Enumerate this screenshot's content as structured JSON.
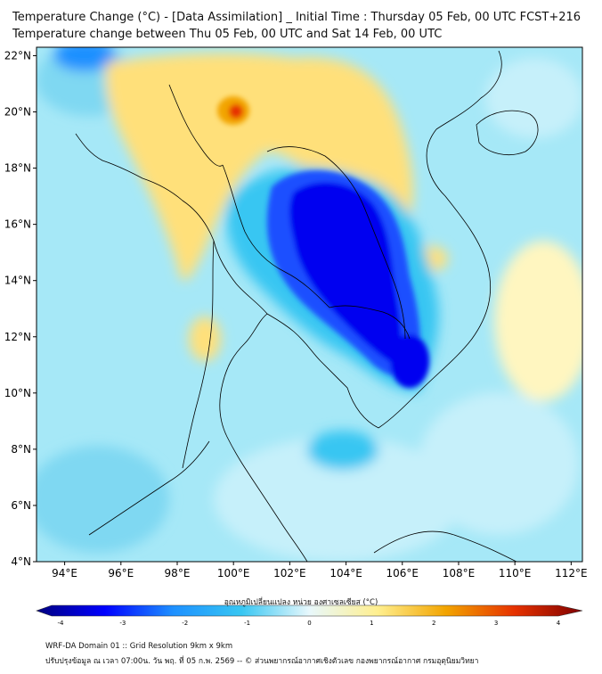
{
  "header": {
    "title_line1": "Temperature Change (°C) - [Data Assimilation] _ Initial Time : Thursday 05 Feb, 00 UTC FCST+216",
    "title_line2": "Temperature change between Thu 05 Feb, 00 UTC and Sat 14 Feb, 00 UTC"
  },
  "map": {
    "lat_labels": [
      "22°N",
      "20°N",
      "18°N",
      "16°N",
      "14°N",
      "12°N",
      "10°N",
      "8°N",
      "6°N",
      "4°N"
    ],
    "lon_labels": [
      "94°E",
      "96°E",
      "98°E",
      "100°E",
      "102°E",
      "104°E",
      "106°E",
      "108°E",
      "110°E",
      "112°E"
    ],
    "lat_values": [
      22,
      20,
      18,
      16,
      14,
      12,
      10,
      8,
      6,
      4
    ],
    "lon_values": [
      94,
      96,
      98,
      100,
      102,
      104,
      106,
      108,
      110,
      112
    ],
    "lat_range": [
      4,
      22.3
    ],
    "lon_range": [
      93,
      112.4
    ]
  },
  "colorbar": {
    "label": "อุณหภูมิเปลี่ยนแปลง หน่วย องศาเซลเซียส (°C)",
    "tick_labels": [
      "-4",
      "-3",
      "-2",
      "-1",
      "0",
      "1",
      "2",
      "3",
      "4"
    ],
    "min": -4,
    "max": 4,
    "colors": [
      "#00007f",
      "#0000ff",
      "#1e90ff",
      "#37c6f2",
      "#e8f8fc",
      "#ffef8f",
      "#f2a400",
      "#e63200",
      "#7f0000"
    ]
  },
  "footer": {
    "line1": "WRF-DA Domain 01 :: Grid Resolution 9km x 9km",
    "line2": "ปรับปรุงข้อมูล ณ เวลา 07:00น. วัน พฤ. ที่ 05 ก.พ. 2569 -- © ส่วนพยากรณ์อากาศเชิงตัวเลข กองพยากรณ์อากาศ กรมอุตุนิยมวิทยา"
  }
}
